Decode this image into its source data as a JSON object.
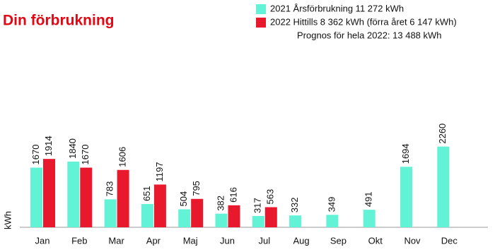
{
  "chart_data": {
    "type": "bar",
    "title": "Din förbrukning",
    "y_label": "kWh",
    "categories": [
      "Jan",
      "Feb",
      "Mar",
      "Apr",
      "Maj",
      "Jun",
      "Jul",
      "Aug",
      "Sep",
      "Okt",
      "Nov",
      "Dec"
    ],
    "series": [
      {
        "name": "2021 Årsförbrukning 11 272 kWh",
        "color": "#62f2d6",
        "values": [
          1670,
          1840,
          783,
          651,
          504,
          382,
          317,
          332,
          349,
          491,
          1694,
          2260
        ]
      },
      {
        "name": "2022 Hittills 8 362 kWh (förra året 6 147 kWh)",
        "color": "#e8192c",
        "values": [
          1914,
          1670,
          1606,
          1197,
          795,
          616,
          563,
          null,
          null,
          null,
          null,
          null
        ]
      }
    ],
    "legend_note": "Prognos för hela 2022: 13 488 kWh",
    "legend_position": "top-right"
  }
}
